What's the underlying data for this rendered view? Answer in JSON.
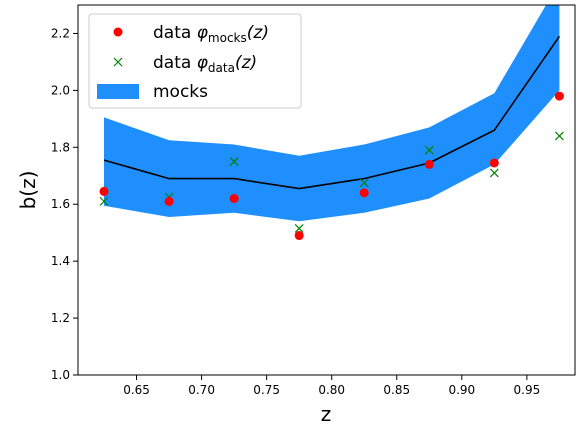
{
  "chart_data": {
    "type": "line",
    "xlabel": "z",
    "ylabel": "b(z)",
    "xlim": [
      0.605,
      0.987
    ],
    "ylim": [
      1.0,
      2.3
    ],
    "x_ticks": [
      "0.65",
      "0.70",
      "0.75",
      "0.80",
      "0.85",
      "0.90",
      "0.95"
    ],
    "x_tick_values": [
      0.65,
      0.7,
      0.75,
      0.8,
      0.85,
      0.9,
      0.95
    ],
    "y_ticks": [
      "1.0",
      "1.2",
      "1.4",
      "1.6",
      "1.8",
      "2.0",
      "2.2"
    ],
    "y_tick_values": [
      1.0,
      1.2,
      1.4,
      1.6,
      1.8,
      2.0,
      2.2
    ],
    "grid": false,
    "legend_position": "top-left",
    "legend": {
      "red_prefix": "data ",
      "red_phi": "φ",
      "red_sub": "mocks",
      "red_suffix": "(z)",
      "green_prefix": "data ",
      "green_phi": "φ",
      "green_sub": "data",
      "green_suffix": "(z)",
      "band": "mocks"
    },
    "x": [
      0.625,
      0.675,
      0.725,
      0.775,
      0.825,
      0.875,
      0.925,
      0.975
    ],
    "series": [
      {
        "name": "data φmocks(z)",
        "kind": "points",
        "marker": "circle",
        "color": "#ff0000",
        "values": [
          1.645,
          1.61,
          1.62,
          1.49,
          1.64,
          1.74,
          1.745,
          1.98
        ]
      },
      {
        "name": "data φdata(z)",
        "kind": "points",
        "marker": "x",
        "color": "#008000",
        "values": [
          1.61,
          1.625,
          1.75,
          1.515,
          1.675,
          1.79,
          1.71,
          1.84
        ]
      },
      {
        "name": "mocks",
        "kind": "band",
        "color": "#1f8ffd",
        "lower": [
          1.595,
          1.555,
          1.57,
          1.54,
          1.57,
          1.62,
          1.74,
          2.0
        ],
        "upper": [
          1.905,
          1.825,
          1.81,
          1.77,
          1.81,
          1.87,
          1.99,
          2.38
        ],
        "mean": [
          1.755,
          1.69,
          1.69,
          1.655,
          1.69,
          1.745,
          1.86,
          2.19
        ]
      }
    ]
  }
}
